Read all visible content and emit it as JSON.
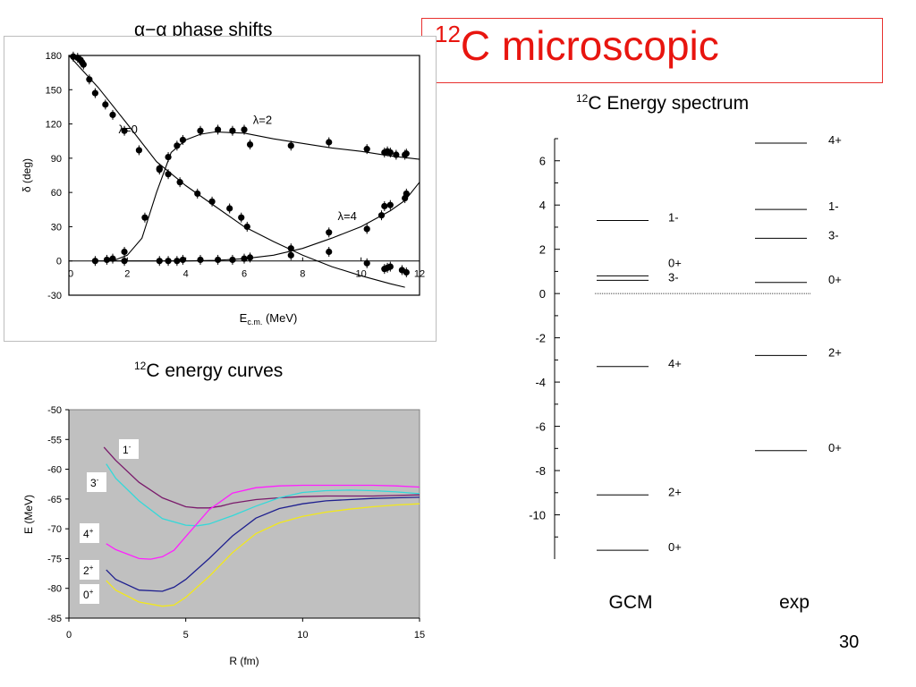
{
  "slide": {
    "title_sup": "12",
    "title_main": "C microscopic",
    "page_number": "30",
    "caption_phase": "α−α phase shifts",
    "caption_curves_sup": "12",
    "caption_curves": "C energy curves",
    "caption_spectrum_sup": "12",
    "caption_spectrum": "C Energy spectrum"
  },
  "chart_data": [
    {
      "type": "scatter",
      "xlabel": "E",
      "xlabel_sub": "c.m.",
      "xlabel_unit": " (MeV)",
      "ylabel": "δ (deg)",
      "xlim": [
        0,
        12
      ],
      "ylim": [
        -30,
        180
      ],
      "xticks": [
        0,
        2,
        4,
        6,
        8,
        10,
        12
      ],
      "yticks": [
        -30,
        0,
        30,
        60,
        90,
        120,
        150,
        180
      ],
      "series": [
        {
          "name": "λ=0",
          "points": [
            [
              0.15,
              179
            ],
            [
              0.3,
              178
            ],
            [
              0.4,
              176
            ],
            [
              0.45,
              174
            ],
            [
              0.5,
              172
            ],
            [
              0.7,
              159
            ],
            [
              0.9,
              147
            ],
            [
              1.25,
              137
            ],
            [
              1.5,
              128
            ],
            [
              1.9,
              114
            ],
            [
              2.4,
              97
            ],
            [
              3.1,
              81
            ],
            [
              3.4,
              76
            ],
            [
              3.8,
              69
            ],
            [
              4.4,
              59
            ],
            [
              4.9,
              52
            ],
            [
              5.5,
              46
            ],
            [
              5.9,
              38
            ],
            [
              6.1,
              30
            ],
            [
              7.6,
              11
            ],
            [
              8.9,
              8
            ],
            [
              10.2,
              -2
            ],
            [
              10.8,
              -7
            ],
            [
              10.9,
              -6
            ],
            [
              11.0,
              -5
            ],
            [
              11.4,
              -8
            ],
            [
              11.55,
              -10
            ]
          ],
          "curve": [
            [
              0,
              180
            ],
            [
              1,
              152
            ],
            [
              2,
              120
            ],
            [
              3,
              87
            ],
            [
              4,
              66
            ],
            [
              5,
              48
            ],
            [
              6,
              30
            ],
            [
              7,
              17
            ],
            [
              8,
              5
            ],
            [
              9,
              -5
            ],
            [
              10,
              -13
            ],
            [
              11,
              -20
            ],
            [
              11.5,
              -23
            ]
          ]
        },
        {
          "name": "λ=2",
          "points": [
            [
              0.9,
              0
            ],
            [
              1.3,
              1
            ],
            [
              1.5,
              2
            ],
            [
              1.9,
              8
            ],
            [
              2.6,
              38
            ],
            [
              3.1,
              80
            ],
            [
              3.4,
              91
            ],
            [
              3.7,
              101
            ],
            [
              3.9,
              106
            ],
            [
              4.5,
              114
            ],
            [
              5.1,
              115
            ],
            [
              5.6,
              114
            ],
            [
              6.0,
              115
            ],
            [
              6.2,
              102
            ],
            [
              7.6,
              101
            ],
            [
              8.9,
              104
            ],
            [
              10.2,
              98
            ],
            [
              10.8,
              95
            ],
            [
              10.9,
              96
            ],
            [
              11.0,
              95
            ],
            [
              11.2,
              93
            ],
            [
              11.5,
              93
            ],
            [
              11.55,
              94
            ]
          ],
          "curve": [
            [
              1.5,
              0
            ],
            [
              2,
              5
            ],
            [
              2.5,
              20
            ],
            [
              3,
              60
            ],
            [
              3.5,
              95
            ],
            [
              4,
              106
            ],
            [
              4.5,
              111
            ],
            [
              5,
              113
            ],
            [
              6,
              112
            ],
            [
              7,
              107
            ],
            [
              8,
              103
            ],
            [
              9,
              99
            ],
            [
              10,
              96
            ],
            [
              11,
              92
            ],
            [
              12,
              89
            ]
          ]
        },
        {
          "name": "λ=4",
          "points": [
            [
              1.9,
              0
            ],
            [
              3.1,
              0
            ],
            [
              3.4,
              0
            ],
            [
              3.7,
              0
            ],
            [
              3.9,
              1
            ],
            [
              4.5,
              1
            ],
            [
              5.1,
              1
            ],
            [
              5.6,
              1
            ],
            [
              6.0,
              2
            ],
            [
              6.2,
              3
            ],
            [
              7.6,
              5
            ],
            [
              8.9,
              25
            ],
            [
              10.2,
              28
            ],
            [
              10.7,
              40
            ],
            [
              10.8,
              48
            ],
            [
              11.0,
              49
            ],
            [
              11.5,
              55
            ],
            [
              11.55,
              59
            ]
          ],
          "curve": [
            [
              1,
              0
            ],
            [
              4,
              0
            ],
            [
              5,
              0.5
            ],
            [
              6,
              2
            ],
            [
              7,
              5
            ],
            [
              8,
              11
            ],
            [
              9,
              20
            ],
            [
              10,
              30
            ],
            [
              11,
              44
            ],
            [
              11.5,
              53
            ],
            [
              12,
              69
            ]
          ]
        }
      ]
    },
    {
      "type": "line",
      "xlabel": "R (fm)",
      "ylabel": "E (MeV)",
      "xlim": [
        0,
        15
      ],
      "ylim": [
        -85,
        -50
      ],
      "xticks": [
        0,
        5,
        10,
        15
      ],
      "yticks": [
        -50,
        -55,
        -60,
        -65,
        -70,
        -75,
        -80,
        -85
      ],
      "series": [
        {
          "name": "1",
          "name_sup": "-",
          "color": "#7a1a6b",
          "x": [
            1.5,
            2,
            3,
            4,
            5,
            5.5,
            6,
            6.5,
            7,
            8,
            9,
            10,
            11,
            12,
            13,
            14,
            15
          ],
          "y": [
            -56.3,
            -58.5,
            -62.2,
            -64.8,
            -66.3,
            -66.5,
            -66.5,
            -66.2,
            -65.7,
            -65.1,
            -64.8,
            -64.6,
            -64.5,
            -64.5,
            -64.5,
            -64.4,
            -64.3
          ]
        },
        {
          "name": "3",
          "name_sup": "-",
          "color": "#33d9d9",
          "x": [
            1.6,
            2,
            3,
            4,
            5,
            5.5,
            6,
            7,
            8,
            9,
            10,
            11,
            12,
            13,
            14,
            15
          ],
          "y": [
            -59.1,
            -61.5,
            -65.3,
            -68.3,
            -69.4,
            -69.5,
            -69.2,
            -67.8,
            -66.2,
            -64.8,
            -63.9,
            -63.6,
            -63.5,
            -63.6,
            -63.8,
            -64.1
          ]
        },
        {
          "name": "4",
          "name_sup": "+",
          "color": "#ff1fff",
          "x": [
            1.6,
            2,
            3,
            3.5,
            4,
            4.5,
            5,
            6,
            7,
            8,
            9,
            10,
            11,
            12,
            13,
            14,
            15
          ],
          "y": [
            -72.5,
            -73.5,
            -75.0,
            -75.1,
            -74.7,
            -73.6,
            -71.3,
            -66.8,
            -64.0,
            -63.1,
            -62.8,
            -62.7,
            -62.7,
            -62.7,
            -62.7,
            -62.8,
            -63.0
          ]
        },
        {
          "name": "2",
          "name_sup": "+",
          "color": "#1e1f8f",
          "x": [
            1.6,
            2,
            3,
            4,
            4.5,
            5,
            6,
            7,
            8,
            9,
            10,
            11,
            12,
            13,
            14,
            15
          ],
          "y": [
            -76.9,
            -78.5,
            -80.3,
            -80.5,
            -79.8,
            -78.5,
            -75.0,
            -71.2,
            -68.2,
            -66.6,
            -65.8,
            -65.3,
            -65.1,
            -64.9,
            -64.8,
            -64.7
          ]
        },
        {
          "name": "0",
          "name_sup": "+",
          "color": "#f2e81a",
          "x": [
            1.6,
            2,
            3,
            4,
            4.5,
            5,
            6,
            7,
            8,
            9,
            10,
            11,
            12,
            13,
            14,
            15
          ],
          "y": [
            -78.7,
            -80.3,
            -82.3,
            -83.0,
            -82.8,
            -81.5,
            -78.0,
            -74.0,
            -70.8,
            -69.0,
            -67.9,
            -67.2,
            -66.7,
            -66.3,
            -66.0,
            -65.8
          ]
        }
      ]
    },
    {
      "type": "spectrum",
      "ylim": [
        -12,
        7
      ],
      "yticks": [
        6,
        4,
        2,
        0,
        -2,
        -4,
        -6,
        -8,
        -10
      ],
      "zero_line": true,
      "columns": [
        {
          "name": "GCM",
          "levels": [
            {
              "label": "1-",
              "energy": 3.3
            },
            {
              "label": "0+",
              "energy": 0.8
            },
            {
              "label": "3-",
              "energy": 0.6
            },
            {
              "label": "4+",
              "energy": -3.3
            },
            {
              "label": "2+",
              "energy": -9.1
            },
            {
              "label": "0+",
              "energy": -11.6
            }
          ]
        },
        {
          "name": "exp",
          "levels": [
            {
              "label": "4+",
              "energy": 6.8
            },
            {
              "label": "1-",
              "energy": 3.8
            },
            {
              "label": "3-",
              "energy": 2.5
            },
            {
              "label": "0+",
              "energy": 0.5
            },
            {
              "label": "2+",
              "energy": -2.8
            },
            {
              "label": "0+",
              "energy": -7.1
            }
          ]
        }
      ]
    }
  ]
}
